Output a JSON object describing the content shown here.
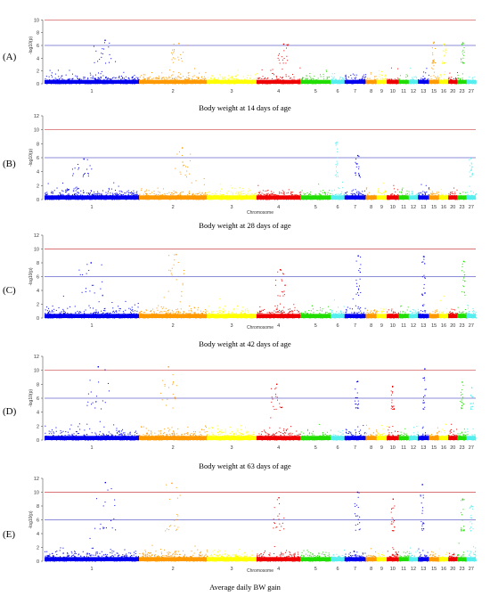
{
  "figure": {
    "panels": [
      {
        "letter": "(A)",
        "caption": "Body weight at 14 days of age"
      },
      {
        "letter": "(B)",
        "caption": "Body weight at 28 days of age"
      },
      {
        "letter": "(C)",
        "caption": "Body weight at 42 days of age"
      },
      {
        "letter": "(D)",
        "caption": "Body weight at 63 days of age"
      },
      {
        "letter": "(E)",
        "caption": "Average daily BW gain"
      }
    ]
  },
  "chart_data": [
    {
      "type": "scatter",
      "title": "Body weight at 14 days of age",
      "xlabel": "",
      "ylabel": "-log10(p)",
      "ylim": [
        0,
        12
      ],
      "yticks": [
        0,
        2,
        4,
        6,
        8,
        10
      ],
      "suggestive_threshold": 6,
      "genomewide_threshold": 10,
      "chromosome_labels": [
        "1",
        "2",
        "3",
        "4",
        "5",
        "6",
        "7",
        "8",
        "9",
        "10",
        "11",
        "12",
        "13",
        "15",
        "16",
        "20",
        "23",
        "27"
      ],
      "chromosome_colors": [
        "#0000ee",
        "#ff9900",
        "#ffff00",
        "#ee0000",
        "#22dd00",
        "#55eeee",
        "#0000ee",
        "#ff9900",
        "#ffff00",
        "#ee0000",
        "#22dd00",
        "#55eeee",
        "#0000ee",
        "#ff9900",
        "#ffff00",
        "#ee0000",
        "#22dd00",
        "#55eeee"
      ],
      "threshold_colors": [
        "#6666cc",
        "#cc4444"
      ],
      "peaks": [
        [
          1,
          6.8
        ],
        [
          2,
          6.3
        ],
        [
          4,
          6.2
        ],
        [
          15,
          6.5
        ],
        [
          16,
          6.2
        ],
        [
          23,
          6.4
        ]
      ]
    },
    {
      "type": "scatter",
      "title": "Body weight at 28 days of age",
      "xlabel": "Chromosome",
      "ylabel": "-log10(p)",
      "ylim": [
        0,
        12
      ],
      "yticks": [
        0,
        2,
        4,
        6,
        8,
        10,
        12
      ],
      "suggestive_threshold": 6,
      "genomewide_threshold": 10,
      "chromosome_labels": [
        "1",
        "2",
        "3",
        "4",
        "5",
        "6",
        "7",
        "8",
        "9",
        "10",
        "11",
        "12",
        "13",
        "15",
        "16",
        "20",
        "23",
        "27"
      ],
      "chromosome_colors": [
        "#0000ee",
        "#ff9900",
        "#ffff00",
        "#ee0000",
        "#22dd00",
        "#55eeee",
        "#0000ee",
        "#ff9900",
        "#ffff00",
        "#ee0000",
        "#22dd00",
        "#55eeee",
        "#0000ee",
        "#ff9900",
        "#ffff00",
        "#ee0000",
        "#22dd00",
        "#55eeee"
      ],
      "threshold_colors": [
        "#6666cc",
        "#cc4444"
      ],
      "peaks": [
        [
          1,
          5.8
        ],
        [
          2,
          7.4
        ],
        [
          6,
          8.2
        ],
        [
          7,
          6.3
        ],
        [
          27,
          5.9
        ]
      ]
    },
    {
      "type": "scatter",
      "title": "Body weight at 42 days of age",
      "xlabel": "Chromosome",
      "ylabel": "-log10(p)",
      "ylim": [
        0,
        12
      ],
      "yticks": [
        0,
        2,
        4,
        6,
        8,
        10,
        12
      ],
      "suggestive_threshold": 6,
      "genomewide_threshold": 10,
      "chromosome_labels": [
        "1",
        "2",
        "3",
        "4",
        "5",
        "6",
        "7",
        "8",
        "9",
        "10",
        "11",
        "12",
        "13",
        "15",
        "16",
        "20",
        "23",
        "27"
      ],
      "chromosome_colors": [
        "#0000ee",
        "#ff9900",
        "#ffff00",
        "#ee0000",
        "#22dd00",
        "#55eeee",
        "#0000ee",
        "#ff9900",
        "#ffff00",
        "#ee0000",
        "#22dd00",
        "#55eeee",
        "#0000ee",
        "#ff9900",
        "#ffff00",
        "#ee0000",
        "#22dd00",
        "#55eeee"
      ],
      "threshold_colors": [
        "#6666cc",
        "#cc4444"
      ],
      "peaks": [
        [
          1,
          8.0
        ],
        [
          2,
          9.2
        ],
        [
          4,
          7.0
        ],
        [
          7,
          9.0
        ],
        [
          13,
          8.9
        ],
        [
          23,
          8.2
        ]
      ]
    },
    {
      "type": "scatter",
      "title": "Body weight at 63 days of age",
      "xlabel": "",
      "ylabel": "-log10(p)",
      "ylim": [
        0,
        12
      ],
      "yticks": [
        0,
        2,
        4,
        6,
        8,
        10,
        12
      ],
      "suggestive_threshold": 6,
      "genomewide_threshold": 10,
      "chromosome_labels": [
        "1",
        "2",
        "3",
        "4",
        "5",
        "6",
        "7",
        "8",
        "9",
        "10",
        "11",
        "12",
        "13",
        "15",
        "16",
        "20",
        "23",
        "27"
      ],
      "chromosome_colors": [
        "#0000ee",
        "#ff9900",
        "#ffff00",
        "#ee0000",
        "#22dd00",
        "#55eeee",
        "#0000ee",
        "#ff9900",
        "#ffff00",
        "#ee0000",
        "#22dd00",
        "#55eeee",
        "#0000ee",
        "#ff9900",
        "#ffff00",
        "#ee0000",
        "#22dd00",
        "#55eeee"
      ],
      "threshold_colors": [
        "#6666cc",
        "#cc4444"
      ],
      "peaks": [
        [
          1,
          10.5
        ],
        [
          2,
          10.5
        ],
        [
          4,
          8.0
        ],
        [
          7,
          8.4
        ],
        [
          10,
          7.7
        ],
        [
          13,
          10.2
        ],
        [
          23,
          8.3
        ],
        [
          27,
          7.5
        ]
      ]
    },
    {
      "type": "scatter",
      "title": "Average daily BW gain",
      "xlabel": "Chromosome",
      "ylabel": "-log10(p)",
      "ylim": [
        0,
        12
      ],
      "yticks": [
        0,
        2,
        4,
        6,
        8,
        10,
        12
      ],
      "suggestive_threshold": 6,
      "genomewide_threshold": 10,
      "chromosome_labels": [
        "1",
        "2",
        "3",
        "4",
        "5",
        "6",
        "7",
        "8",
        "9",
        "10",
        "11",
        "12",
        "13",
        "15",
        "16",
        "20",
        "23",
        "27"
      ],
      "chromosome_colors": [
        "#0000ee",
        "#ff9900",
        "#ffff00",
        "#ee0000",
        "#22dd00",
        "#55eeee",
        "#0000ee",
        "#ff9900",
        "#ffff00",
        "#ee0000",
        "#22dd00",
        "#55eeee",
        "#0000ee",
        "#ff9900",
        "#ffff00",
        "#ee0000",
        "#22dd00",
        "#55eeee"
      ],
      "threshold_colors": [
        "#6666cc",
        "#cc4444"
      ],
      "peaks": [
        [
          1,
          11.4
        ],
        [
          2,
          11.3
        ],
        [
          4,
          9.2
        ],
        [
          7,
          10.0
        ],
        [
          10,
          9.0
        ],
        [
          13,
          11.1
        ],
        [
          23,
          9.0
        ],
        [
          27,
          8.0
        ]
      ]
    }
  ]
}
